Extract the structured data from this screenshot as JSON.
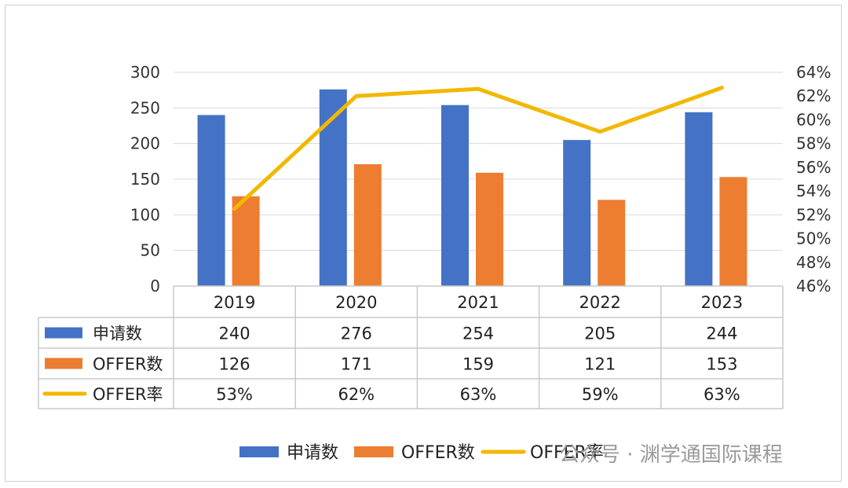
{
  "chart_data": {
    "type": "bar",
    "categories": [
      "2019",
      "2020",
      "2021",
      "2022",
      "2023"
    ],
    "series": [
      {
        "name": "申请数",
        "type": "bar",
        "axis": "left",
        "color": "#4472C4",
        "values": [
          240,
          276,
          254,
          205,
          244
        ],
        "labels": [
          "240",
          "276",
          "254",
          "205",
          "244"
        ]
      },
      {
        "name": "OFFER数",
        "type": "bar",
        "axis": "left",
        "color": "#ED7D31",
        "values": [
          126,
          171,
          159,
          121,
          153
        ],
        "labels": [
          "126",
          "171",
          "159",
          "121",
          "153"
        ]
      },
      {
        "name": "OFFER率",
        "type": "line",
        "axis": "right",
        "color": "#F2B800",
        "values": [
          52.5,
          62,
          62.6,
          59,
          62.7
        ],
        "labels": [
          "53%",
          "62%",
          "63%",
          "59%",
          "63%"
        ]
      }
    ],
    "y_left": {
      "min": 0,
      "max": 300,
      "ticks": [
        "0",
        "50",
        "100",
        "150",
        "200",
        "250",
        "300"
      ]
    },
    "y_right": {
      "min": 46,
      "max": 64,
      "ticks": [
        "46%",
        "48%",
        "50%",
        "52%",
        "54%",
        "56%",
        "58%",
        "60%",
        "62%",
        "64%"
      ]
    },
    "grid": true,
    "data_table": true,
    "legend_position": "bottom-right"
  },
  "watermark": {
    "text": "公众号 · 渊学通国际课程"
  }
}
